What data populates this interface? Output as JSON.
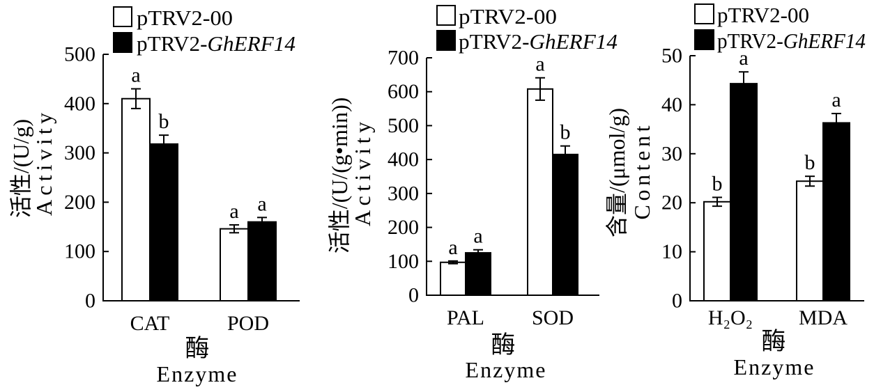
{
  "chart_data": [
    {
      "type": "bar",
      "categories": [
        "CAT",
        "POD"
      ],
      "series": [
        {
          "name": "pTRV2-00",
          "color": "#ffffff",
          "values": [
            410,
            146
          ],
          "errors": [
            20,
            8
          ],
          "labels": [
            "a",
            "a"
          ]
        },
        {
          "name": "pTRV2-GhERF14",
          "name_italic": "GhERF14",
          "color": "#000000",
          "values": [
            318,
            160
          ],
          "errors": [
            18,
            9
          ],
          "labels": [
            "b",
            "a"
          ]
        }
      ],
      "ylabel": [
        "活性/(U/g)",
        "Activity"
      ],
      "xlabel": [
        "酶",
        "Enzyme"
      ],
      "ylim": [
        0,
        500
      ],
      "yticks": [
        0,
        100,
        200,
        300,
        400,
        500
      ],
      "legend": "top-left",
      "grid": false
    },
    {
      "type": "bar",
      "categories": [
        "PAL",
        "SOD"
      ],
      "series": [
        {
          "name": "pTRV2-00",
          "color": "#ffffff",
          "values": [
            97,
            608
          ],
          "errors": [
            4,
            33
          ],
          "labels": [
            "a",
            "a"
          ]
        },
        {
          "name": "pTRV2-GhERF14",
          "name_italic": "GhERF14",
          "color": "#000000",
          "values": [
            125,
            415
          ],
          "errors": [
            9,
            25
          ],
          "labels": [
            "a",
            "b"
          ]
        }
      ],
      "ylabel": [
        "活性/(U/(g•min))",
        "Activity"
      ],
      "xlabel": [
        "酶",
        "Enzyme"
      ],
      "ylim": [
        0,
        700
      ],
      "yticks": [
        0,
        100,
        200,
        300,
        400,
        500,
        600,
        700
      ],
      "legend": "top-left",
      "grid": false
    },
    {
      "type": "bar",
      "categories": [
        "H₂O₂",
        "MDA"
      ],
      "series": [
        {
          "name": "pTRV2-00",
          "color": "#ffffff",
          "values": [
            20.2,
            24.4
          ],
          "errors": [
            0.9,
            1.0
          ],
          "labels": [
            "b",
            "b"
          ]
        },
        {
          "name": "pTRV2-GhERF14",
          "name_italic": "GhERF14",
          "color": "#000000",
          "values": [
            44.3,
            36.3
          ],
          "errors": [
            2.4,
            1.9
          ],
          "labels": [
            "a",
            "a"
          ]
        }
      ],
      "ylabel": [
        "含量/(μmol/g)",
        "Content"
      ],
      "xlabel": [
        "酶",
        "Enzyme"
      ],
      "ylim": [
        0,
        50
      ],
      "yticks": [
        0,
        10,
        20,
        30,
        40,
        50
      ],
      "legend": "top-left",
      "grid": false
    }
  ]
}
